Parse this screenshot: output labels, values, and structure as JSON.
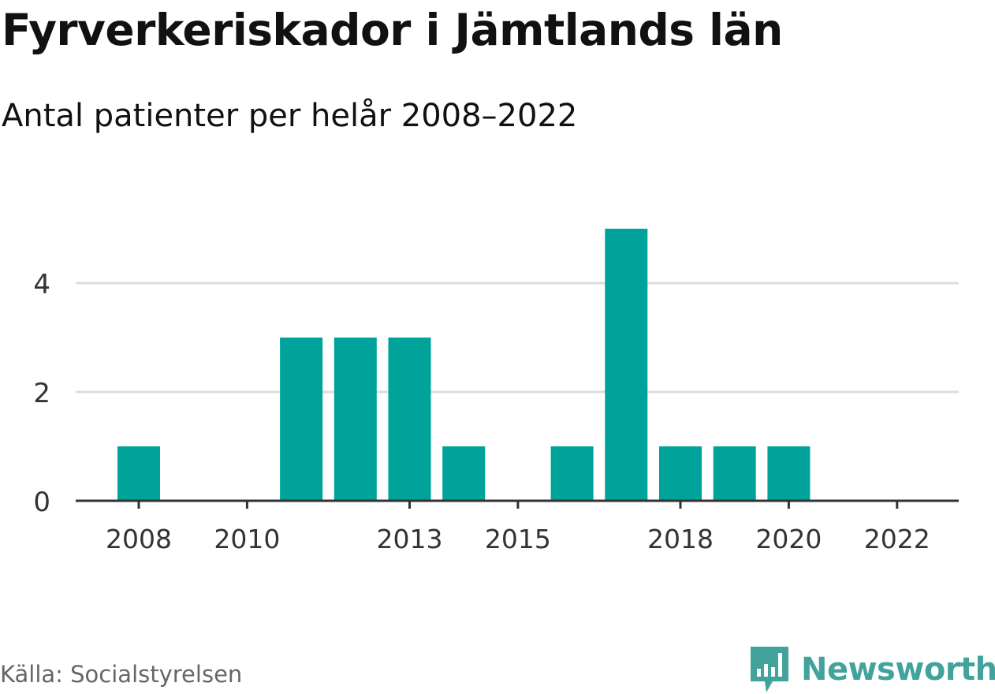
{
  "title": "Fyrverkeriskador i Jämtlands län",
  "subtitle": "Antal patienter per helår 2008–2022",
  "source": "Källa: Socialstyrelsen",
  "brand": {
    "name": "Newsworthy",
    "icon": "newsworthy-logo-icon",
    "color": "#41a39c"
  },
  "chart_data": {
    "type": "bar",
    "title": "Fyrverkeriskador i Jämtlands län",
    "subtitle": "Antal patienter per helår 2008–2022",
    "xlabel": "",
    "ylabel": "",
    "categories": [
      "2008",
      "2009",
      "2010",
      "2011",
      "2012",
      "2013",
      "2014",
      "2015",
      "2016",
      "2017",
      "2018",
      "2019",
      "2020",
      "2021",
      "2022"
    ],
    "values": [
      1,
      0,
      0,
      3,
      3,
      3,
      1,
      0,
      1,
      5,
      1,
      1,
      1,
      0,
      0
    ],
    "x_tick_labels": [
      "2008",
      "2010",
      "2013",
      "2015",
      "2018",
      "2020",
      "2022"
    ],
    "y_ticks": [
      0,
      2,
      4
    ],
    "ylim": [
      0,
      5
    ],
    "grid": true,
    "legend": "none",
    "bar_color": "#00a39a",
    "grid_color": "#dddddd",
    "axis_color": "#333333"
  }
}
